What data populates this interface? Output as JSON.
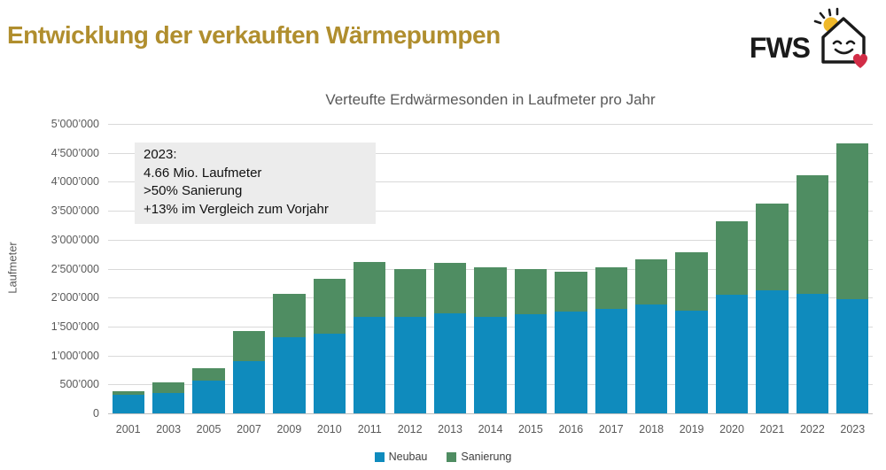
{
  "page": {
    "title": "Entwicklung der verkauften Wärmepumpen",
    "logo_text": "FWS"
  },
  "chart_data": {
    "type": "bar",
    "stacked": true,
    "title": "Verteufte Erdwärmesonden in Laufmeter pro Jahr",
    "xlabel": "",
    "ylabel": "Laufmeter",
    "ylim": [
      0,
      5000000
    ],
    "ytick_step": 500000,
    "ytick_labels": [
      "0",
      "500’000",
      "1’000’000",
      "1’500’000",
      "2’000’000",
      "2’500’000",
      "3’000’000",
      "3’500’000",
      "4’000’000",
      "4’500’000",
      "5’000’000"
    ],
    "grid": true,
    "legend_position": "bottom",
    "categories": [
      "2001",
      "2003",
      "2005",
      "2007",
      "2009",
      "2010",
      "2011",
      "2012",
      "2013",
      "2014",
      "2015",
      "2016",
      "2017",
      "2018",
      "2019",
      "2020",
      "2021",
      "2022",
      "2023"
    ],
    "series": [
      {
        "name": "Neubau",
        "color": "#0f8bbd",
        "values": [
          320000,
          350000,
          560000,
          910000,
          1310000,
          1380000,
          1670000,
          1660000,
          1730000,
          1660000,
          1710000,
          1760000,
          1810000,
          1880000,
          1770000,
          2050000,
          2130000,
          2070000,
          1980000
        ]
      },
      {
        "name": "Sanierung",
        "color": "#4f8d62",
        "values": [
          70000,
          190000,
          220000,
          520000,
          750000,
          950000,
          950000,
          840000,
          870000,
          860000,
          790000,
          690000,
          720000,
          780000,
          1020000,
          1270000,
          1500000,
          2050000,
          2680000
        ]
      }
    ]
  },
  "annotation": {
    "lines": [
      "2023:",
      "4.66 Mio. Laufmeter",
      ">50% Sanierung",
      "+13% im Vergleich zum Vorjahr"
    ]
  },
  "colors": {
    "title_gold": "#b08e2e",
    "axis_text": "#595959",
    "gridline": "#d9d9d9",
    "neubau_blue": "#0f8bbd",
    "sanierung_green": "#4f8d62",
    "annotation_bg": "#ececec",
    "sun_yellow": "#efb82a",
    "heart_red": "#d22d47"
  }
}
